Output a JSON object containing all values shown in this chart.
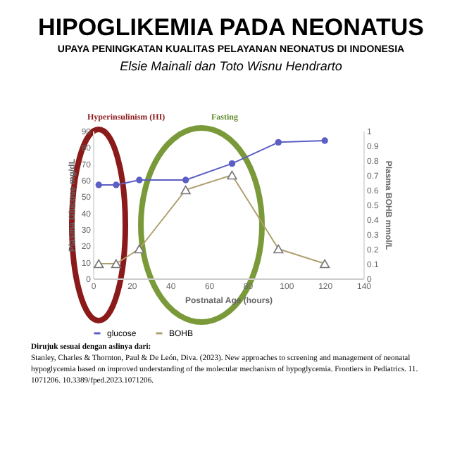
{
  "chart_data": {
    "type": "line",
    "title": "HIPOGLIKEMIA PADA NEONATUS",
    "subtitle": "UPAYA PENINGKATAN KUALITAS PELAYANAN NEONATUS DI INDONESIA",
    "annotations": [
      "Elsie Mainali dan Toto Wisnu Hendrarto",
      "Hyperinsulinism (HI)",
      "Fasting",
      "Dirujuk  sesuai dengan aslinya dari:",
      "Stanley, Charles & Thornton,  Paul & De León, Diva. (2023). New approaches to screening and management of neonatal hypoglycemia based on improved understanding of the molecular mechanism of hypoglycemia. Frontiers in Pediatrics. 11. 1071206. 10.3389/fped.2023.1071206."
    ],
    "xlabel": "Postnatal Age (hours)",
    "ylabel": "Plasma Glucose mg/dL",
    "y2label": "Plasma BOHB mmol/L",
    "x": [
      3,
      12,
      24,
      48,
      72,
      96,
      120
    ],
    "series": [
      {
        "name": "glucose",
        "color": "#5b5ec4",
        "marker": "circle",
        "values": [
          57,
          57,
          60,
          60,
          70,
          83,
          84
        ]
      },
      {
        "name": "BOHB",
        "color": "#b0a070",
        "marker": "triangle",
        "axis": "y2",
        "values": [
          0.1,
          0.1,
          0.2,
          0.6,
          0.7,
          0.2,
          0.1
        ]
      }
    ],
    "xlim": [
      0,
      140
    ],
    "xticks": [
      0,
      20,
      40,
      60,
      80,
      100,
      120,
      140
    ],
    "ylim": [
      0,
      90
    ],
    "yticks": [
      0,
      10,
      20,
      30,
      40,
      50,
      60,
      70,
      80,
      90
    ],
    "y2lim": [
      0,
      1
    ],
    "y2ticks": [
      0,
      0.1,
      0.2,
      0.3,
      0.4,
      0.5,
      0.6,
      0.7,
      0.8,
      0.9,
      1
    ],
    "legend": "bottom"
  }
}
